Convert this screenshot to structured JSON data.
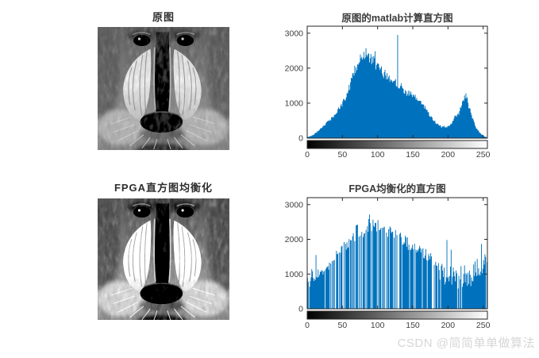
{
  "watermark": {
    "text": "CSDN @简简单单做算法",
    "color": "#d6d6d6"
  },
  "panels": {
    "original_image": {
      "title": "原图",
      "description": "grayscale mandrill baboon face photo"
    },
    "equalized_image": {
      "title": "FPGA直方图均衡化",
      "description": "histogram-equalized grayscale mandrill baboon face photo"
    }
  },
  "chart_data": [
    {
      "type": "bar",
      "title": "原图的matlab计算直方图",
      "xlabel": "",
      "ylabel": "",
      "bins": 256,
      "xlim": [
        0,
        255
      ],
      "ylim": [
        0,
        3200
      ],
      "xticks": [
        0,
        50,
        100,
        150,
        200,
        250
      ],
      "yticks": [
        0,
        1000,
        2000,
        3000
      ],
      "grid": false,
      "legend": null,
      "bar_color": "#0072BD",
      "axis_color": "#262626",
      "tick_label_color": "#404040",
      "title_color": "#3b3b3b",
      "colorbar_ramp": [
        "#000000",
        "#ffffff"
      ],
      "envelope": [
        [
          0,
          30
        ],
        [
          5,
          60
        ],
        [
          10,
          110
        ],
        [
          15,
          200
        ],
        [
          20,
          300
        ],
        [
          25,
          390
        ],
        [
          30,
          480
        ],
        [
          35,
          580
        ],
        [
          40,
          700
        ],
        [
          45,
          840
        ],
        [
          50,
          1000
        ],
        [
          55,
          1200
        ],
        [
          60,
          1500
        ],
        [
          65,
          1800
        ],
        [
          70,
          2050
        ],
        [
          75,
          2250
        ],
        [
          80,
          2400
        ],
        [
          85,
          2340
        ],
        [
          90,
          2260
        ],
        [
          95,
          2160
        ],
        [
          100,
          2030
        ],
        [
          105,
          1920
        ],
        [
          110,
          1820
        ],
        [
          115,
          1720
        ],
        [
          120,
          1650
        ],
        [
          125,
          1600
        ],
        [
          130,
          1520
        ],
        [
          135,
          1420
        ],
        [
          140,
          1320
        ],
        [
          145,
          1260
        ],
        [
          150,
          1200
        ],
        [
          155,
          1120
        ],
        [
          160,
          1050
        ],
        [
          165,
          920
        ],
        [
          170,
          780
        ],
        [
          175,
          620
        ],
        [
          180,
          480
        ],
        [
          185,
          400
        ],
        [
          190,
          330
        ],
        [
          195,
          300
        ],
        [
          200,
          330
        ],
        [
          205,
          440
        ],
        [
          210,
          580
        ],
        [
          215,
          700
        ],
        [
          220,
          1050
        ],
        [
          225,
          1230
        ],
        [
          230,
          770
        ],
        [
          235,
          560
        ],
        [
          240,
          280
        ],
        [
          245,
          150
        ],
        [
          250,
          60
        ],
        [
          255,
          20
        ]
      ],
      "spikes": [
        [
          128,
          2950
        ]
      ],
      "jitter": 0.08,
      "comb_gaps": false
    },
    {
      "type": "bar",
      "title": "FPGA均衡化的直方图",
      "xlabel": "",
      "ylabel": "",
      "bins": 256,
      "xlim": [
        0,
        255
      ],
      "ylim": [
        0,
        3200
      ],
      "xticks": [
        0,
        50,
        100,
        150,
        200,
        250
      ],
      "yticks": [
        0,
        1000,
        2000,
        3000
      ],
      "grid": false,
      "legend": null,
      "bar_color": "#0072BD",
      "axis_color": "#262626",
      "tick_label_color": "#404040",
      "title_color": "#3b3b3b",
      "colorbar_ramp": [
        "#000000",
        "#ffffff"
      ],
      "envelope": [
        [
          0,
          900
        ],
        [
          3,
          700
        ],
        [
          6,
          1100
        ],
        [
          9,
          800
        ],
        [
          12,
          850
        ],
        [
          15,
          950
        ],
        [
          20,
          1050
        ],
        [
          25,
          1150
        ],
        [
          30,
          1250
        ],
        [
          35,
          1300
        ],
        [
          40,
          1500
        ],
        [
          45,
          1620
        ],
        [
          50,
          1700
        ],
        [
          55,
          1850
        ],
        [
          60,
          1950
        ],
        [
          65,
          2050
        ],
        [
          70,
          2200
        ],
        [
          75,
          2250
        ],
        [
          80,
          2300
        ],
        [
          85,
          2350
        ],
        [
          90,
          2430
        ],
        [
          95,
          2380
        ],
        [
          100,
          2330
        ],
        [
          105,
          2300
        ],
        [
          110,
          2250
        ],
        [
          115,
          2200
        ],
        [
          120,
          2130
        ],
        [
          125,
          2080
        ],
        [
          130,
          2020
        ],
        [
          135,
          1970
        ],
        [
          140,
          1920
        ],
        [
          145,
          1850
        ],
        [
          150,
          1780
        ],
        [
          155,
          1720
        ],
        [
          160,
          1680
        ],
        [
          165,
          1600
        ],
        [
          170,
          1550
        ],
        [
          175,
          1480
        ],
        [
          180,
          1400
        ],
        [
          183,
          1350
        ],
        [
          186,
          1150
        ],
        [
          190,
          1050
        ],
        [
          193,
          950
        ],
        [
          196,
          850
        ],
        [
          199,
          800
        ],
        [
          202,
          1000
        ],
        [
          205,
          900
        ],
        [
          208,
          950
        ],
        [
          211,
          1100
        ],
        [
          214,
          750
        ],
        [
          217,
          1050
        ],
        [
          220,
          900
        ],
        [
          223,
          1000
        ],
        [
          226,
          880
        ],
        [
          229,
          950
        ],
        [
          232,
          780
        ],
        [
          235,
          1050
        ],
        [
          238,
          1100
        ],
        [
          241,
          1150
        ],
        [
          243,
          1200
        ],
        [
          245,
          950
        ],
        [
          248,
          1100
        ],
        [
          250,
          1300
        ],
        [
          252,
          1450
        ],
        [
          255,
          1280
        ]
      ],
      "spikes": [
        [
          12,
          1550
        ],
        [
          198,
          1980
        ],
        [
          204,
          1700
        ],
        [
          247,
          1870
        ]
      ],
      "jitter": 0.1,
      "comb_gaps": true,
      "gap_density_profile": [
        [
          0,
          0.97
        ],
        [
          20,
          0.9
        ],
        [
          26,
          0.72
        ],
        [
          60,
          0.68
        ],
        [
          120,
          0.7
        ],
        [
          185,
          0.72
        ],
        [
          188,
          0.93
        ],
        [
          240,
          0.9
        ],
        [
          243,
          0.78
        ],
        [
          255,
          0.8
        ]
      ]
    }
  ]
}
